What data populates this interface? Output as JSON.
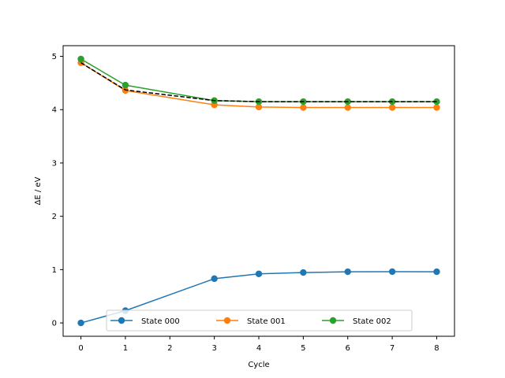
{
  "chart_data": {
    "type": "line",
    "title": "",
    "xlabel": "Cycle",
    "ylabel": "ΔE / eV",
    "x": [
      0,
      1,
      2,
      3,
      4,
      5,
      6,
      7,
      8
    ],
    "xlim": [
      -0.4,
      8.4
    ],
    "ylim": [
      -0.25,
      5.2
    ],
    "xticks": [
      0,
      1,
      2,
      3,
      4,
      5,
      6,
      7,
      8
    ],
    "yticks": [
      0,
      1,
      2,
      3,
      4,
      5
    ],
    "grid": false,
    "legend": {
      "position": "lower-center",
      "columns": 3
    },
    "series": [
      {
        "name": "State 000",
        "color": "#1f77b4",
        "marker": "circle",
        "linestyle": "solid",
        "points": [
          [
            0,
            0.0
          ],
          [
            1,
            0.23
          ],
          [
            3,
            0.83
          ],
          [
            4,
            0.92
          ],
          [
            5,
            0.945
          ],
          [
            6,
            0.96
          ],
          [
            7,
            0.962
          ],
          [
            8,
            0.96
          ]
        ]
      },
      {
        "name": "State 001",
        "color": "#ff7f0e",
        "marker": "circle",
        "linestyle": "solid",
        "points": [
          [
            0,
            4.88
          ],
          [
            1,
            4.36
          ],
          [
            3,
            4.09
          ],
          [
            4,
            4.05
          ],
          [
            5,
            4.04
          ],
          [
            6,
            4.04
          ],
          [
            7,
            4.04
          ],
          [
            8,
            4.04
          ]
        ]
      },
      {
        "name": "State 002",
        "color": "#2ca02c",
        "marker": "circle",
        "linestyle": "solid",
        "points": [
          [
            0,
            4.95
          ],
          [
            1,
            4.46
          ],
          [
            3,
            4.17
          ],
          [
            4,
            4.15
          ],
          [
            5,
            4.15
          ],
          [
            6,
            4.15
          ],
          [
            7,
            4.15
          ],
          [
            8,
            4.15
          ]
        ]
      },
      {
        "name": "",
        "color": "#000000",
        "marker": "none",
        "linestyle": "dashed",
        "points": [
          [
            0,
            4.88
          ],
          [
            1,
            4.37
          ],
          [
            3,
            4.17
          ],
          [
            4,
            4.15
          ],
          [
            5,
            4.15
          ],
          [
            6,
            4.15
          ],
          [
            7,
            4.15
          ],
          [
            8,
            4.15
          ]
        ]
      }
    ]
  }
}
